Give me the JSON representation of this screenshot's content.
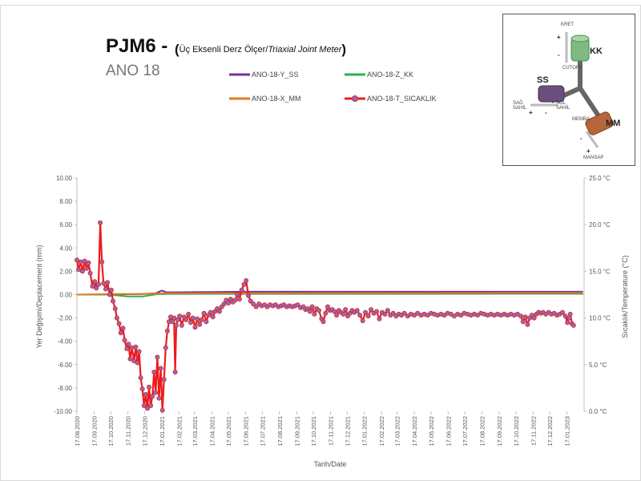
{
  "header": {
    "title": "PJM6 -",
    "subtitle_prefix": "Üç Eksenli Derz Ölçer/",
    "subtitle_italic": "Triaxial Joint Meter",
    "paren_open": "(",
    "paren_close": ")",
    "instrument": "ANO 18"
  },
  "inset": {
    "kret": "KRET",
    "cutoff": "CUTOFF",
    "kk": "KK",
    "ss": "SS",
    "mm": "MM",
    "sag_sahil": "SAĞ SAHİL",
    "sol_sahil": "SOL SAHİL",
    "memba": "MEMBA",
    "mansap": "MANSAP",
    "plus": "+",
    "minus": "-",
    "colors": {
      "kk": "#7dbb80",
      "ss": "#6b4f7e",
      "mm": "#b8653b"
    }
  },
  "chart_data": {
    "type": "line",
    "x_type": "date",
    "x_ticks": [
      "17.08.2020",
      "17.09.2020",
      "17.10.2020",
      "17.11.2020",
      "17.12.2020",
      "17.01.2021",
      "17.02.2021",
      "17.03.2021",
      "17.04.2021",
      "17.05.2021",
      "17.06.2021",
      "17.07.2021",
      "17.08.2021",
      "17.09.2021",
      "17.10.2021",
      "17.11.2021",
      "17.12.2021",
      "17.01.2022",
      "17.02.2022",
      "17.03.2022",
      "17.04.2022",
      "17.05.2022",
      "17.06.2022",
      "17.07.2022",
      "17.08.2022",
      "17.09.2022",
      "17.10.2022",
      "17.11.2022",
      "17.12.2022",
      "17.01.2023"
    ],
    "xlabel": "Tarih/Date",
    "ylabel_left": "Yer Değişimi/Deplacement (mm)",
    "ylabel_right": "Sıcaklık/Temperature (°C)",
    "ylim_left": [
      -10,
      10
    ],
    "yticks_left": [
      "10.00",
      "8.00",
      "6.00",
      "4.00",
      "2.00",
      "0.00",
      "-2.00",
      "-4.00",
      "-6.00",
      "-8.00",
      "-10.00"
    ],
    "ylim_right": [
      0,
      25
    ],
    "yticks_right": [
      "25.0 °C",
      "20.0 °C",
      "15.0 °C",
      "10.0 °C",
      "5.0 °C",
      "0.0 °C"
    ],
    "grid": false,
    "legend": "top-center",
    "series": [
      {
        "name": "ANO-18-Y_SS",
        "axis": "left",
        "color": "#7030a0",
        "points": [
          [
            "2020-08-17",
            0.0
          ],
          [
            "2020-11-01",
            0.02
          ],
          [
            "2020-12-10",
            0.05
          ],
          [
            "2021-01-05",
            0.1
          ],
          [
            "2021-01-17",
            0.35
          ],
          [
            "2021-01-25",
            0.2
          ],
          [
            "2021-02-10",
            0.2
          ],
          [
            "2021-06-15",
            0.25
          ],
          [
            "2023-02-15",
            0.25
          ]
        ]
      },
      {
        "name": "ANO-18-Z_KK",
        "axis": "left",
        "color": "#2eae4e",
        "points": [
          [
            "2020-08-17",
            0.0
          ],
          [
            "2020-10-15",
            0.0
          ],
          [
            "2020-11-15",
            -0.15
          ],
          [
            "2020-12-15",
            -0.15
          ],
          [
            "2021-01-10",
            0.05
          ],
          [
            "2021-02-10",
            0.08
          ],
          [
            "2023-02-15",
            0.1
          ]
        ]
      },
      {
        "name": "ANO-18-X_MM",
        "axis": "left",
        "color": "#e07a1f",
        "points": [
          [
            "2020-08-17",
            0.0
          ],
          [
            "2020-10-15",
            0.05
          ],
          [
            "2020-12-15",
            0.05
          ],
          [
            "2021-01-10",
            0.1
          ],
          [
            "2021-02-10",
            0.12
          ],
          [
            "2023-02-15",
            0.15
          ]
        ]
      },
      {
        "name": "ANO-18-T_SICAKLIK",
        "axis": "right",
        "color": "#ee1b1b",
        "marker": "#8a6fb6",
        "points": [
          [
            "2020-08-17",
            16.2
          ],
          [
            "2020-08-20",
            15.2
          ],
          [
            "2020-08-24",
            16.0
          ],
          [
            "2020-08-27",
            15.0
          ],
          [
            "2020-08-31",
            16.1
          ],
          [
            "2020-09-03",
            15.3
          ],
          [
            "2020-09-07",
            15.9
          ],
          [
            "2020-09-10",
            14.8
          ],
          [
            "2020-09-14",
            13.4
          ],
          [
            "2020-09-18",
            13.9
          ],
          [
            "2020-09-21",
            13.2
          ],
          [
            "2020-09-25",
            13.6
          ],
          [
            "2020-09-28",
            20.2
          ],
          [
            "2020-10-01",
            16.0
          ],
          [
            "2020-10-04",
            13.7
          ],
          [
            "2020-10-08",
            13.1
          ],
          [
            "2020-10-11",
            13.8
          ],
          [
            "2020-10-15",
            12.5
          ],
          [
            "2020-10-18",
            13.0
          ],
          [
            "2020-10-21",
            11.8
          ],
          [
            "2020-10-25",
            11.0
          ],
          [
            "2020-10-28",
            10.0
          ],
          [
            "2020-11-01",
            9.4
          ],
          [
            "2020-11-04",
            8.4
          ],
          [
            "2020-11-08",
            8.9
          ],
          [
            "2020-11-11",
            7.6
          ],
          [
            "2020-11-15",
            6.7
          ],
          [
            "2020-11-18",
            7.2
          ],
          [
            "2020-11-21",
            5.6
          ],
          [
            "2020-11-24",
            6.8
          ],
          [
            "2020-11-28",
            5.4
          ],
          [
            "2020-12-01",
            6.9
          ],
          [
            "2020-12-04",
            5.2
          ],
          [
            "2020-12-07",
            6.4
          ],
          [
            "2020-12-10",
            3.6
          ],
          [
            "2020-12-13",
            2.4
          ],
          [
            "2020-12-16",
            0.6
          ],
          [
            "2020-12-19",
            1.8
          ],
          [
            "2020-12-22",
            0.3
          ],
          [
            "2020-12-25",
            2.6
          ],
          [
            "2020-12-28",
            0.6
          ],
          [
            "2020-12-31",
            1.6
          ],
          [
            "2021-01-03",
            4.2
          ],
          [
            "2021-01-06",
            2.0
          ],
          [
            "2021-01-09",
            5.8
          ],
          [
            "2021-01-12",
            1.4
          ],
          [
            "2021-01-15",
            4.6
          ],
          [
            "2021-01-18",
            0.1
          ],
          [
            "2021-01-21",
            3.4
          ],
          [
            "2021-01-24",
            6.8
          ],
          [
            "2021-01-27",
            8.6
          ],
          [
            "2021-01-30",
            9.6
          ],
          [
            "2021-02-02",
            10.1
          ],
          [
            "2021-02-05",
            9.6
          ],
          [
            "2021-02-08",
            10.0
          ],
          [
            "2021-02-10",
            4.2
          ],
          [
            "2021-02-12",
            9.2
          ],
          [
            "2021-02-15",
            9.8
          ],
          [
            "2021-02-18",
            10.2
          ],
          [
            "2021-02-22",
            9.2
          ],
          [
            "2021-02-26",
            10.1
          ],
          [
            "2021-03-02",
            9.8
          ],
          [
            "2021-03-06",
            10.4
          ],
          [
            "2021-03-10",
            9.5
          ],
          [
            "2021-03-14",
            10.0
          ],
          [
            "2021-03-18",
            9.0
          ],
          [
            "2021-03-22",
            9.9
          ],
          [
            "2021-03-26",
            9.3
          ],
          [
            "2021-03-30",
            9.8
          ],
          [
            "2021-04-03",
            10.5
          ],
          [
            "2021-04-07",
            9.6
          ],
          [
            "2021-04-11",
            10.3
          ],
          [
            "2021-04-15",
            10.6
          ],
          [
            "2021-04-19",
            10.1
          ],
          [
            "2021-04-23",
            10.7
          ],
          [
            "2021-04-27",
            11.0
          ],
          [
            "2021-05-01",
            10.7
          ],
          [
            "2021-05-05",
            11.2
          ],
          [
            "2021-05-09",
            11.5
          ],
          [
            "2021-05-13",
            11.9
          ],
          [
            "2021-05-17",
            11.6
          ],
          [
            "2021-05-21",
            12.0
          ],
          [
            "2021-05-25",
            11.7
          ],
          [
            "2021-05-29",
            11.9
          ],
          [
            "2021-06-02",
            12.5
          ],
          [
            "2021-06-06",
            12.0
          ],
          [
            "2021-06-10",
            13.0
          ],
          [
            "2021-06-14",
            13.6
          ],
          [
            "2021-06-18",
            14.0
          ],
          [
            "2021-06-22",
            12.4
          ],
          [
            "2021-06-26",
            11.8
          ],
          [
            "2021-07-01",
            11.5
          ],
          [
            "2021-07-06",
            11.2
          ],
          [
            "2021-07-11",
            11.5
          ],
          [
            "2021-07-16",
            11.3
          ],
          [
            "2021-07-21",
            11.4
          ],
          [
            "2021-07-26",
            11.2
          ],
          [
            "2021-07-31",
            11.4
          ],
          [
            "2021-08-05",
            11.3
          ],
          [
            "2021-08-10",
            11.4
          ],
          [
            "2021-08-15",
            11.2
          ],
          [
            "2021-08-20",
            11.3
          ],
          [
            "2021-08-25",
            11.4
          ],
          [
            "2021-08-30",
            11.2
          ],
          [
            "2021-09-04",
            11.3
          ],
          [
            "2021-09-09",
            11.2
          ],
          [
            "2021-09-14",
            11.3
          ],
          [
            "2021-09-19",
            11.4
          ],
          [
            "2021-09-24",
            11.1
          ],
          [
            "2021-09-29",
            11.2
          ],
          [
            "2021-10-03",
            10.9
          ],
          [
            "2021-10-07",
            11.0
          ],
          [
            "2021-10-11",
            10.7
          ],
          [
            "2021-10-15",
            11.2
          ],
          [
            "2021-10-19",
            10.4
          ],
          [
            "2021-10-23",
            11.0
          ],
          [
            "2021-10-27",
            10.8
          ],
          [
            "2021-11-01",
            9.9
          ],
          [
            "2021-11-04",
            9.6
          ],
          [
            "2021-11-08",
            10.5
          ],
          [
            "2021-11-12",
            11.2
          ],
          [
            "2021-11-16",
            10.8
          ],
          [
            "2021-11-20",
            10.9
          ],
          [
            "2021-11-24",
            10.7
          ],
          [
            "2021-11-28",
            10.3
          ],
          [
            "2021-12-02",
            10.8
          ],
          [
            "2021-12-06",
            10.6
          ],
          [
            "2021-12-10",
            10.4
          ],
          [
            "2021-12-14",
            10.9
          ],
          [
            "2021-12-18",
            10.2
          ],
          [
            "2021-12-22",
            10.5
          ],
          [
            "2021-12-26",
            10.8
          ],
          [
            "2021-12-30",
            10.6
          ],
          [
            "2022-01-04",
            10.8
          ],
          [
            "2022-01-09",
            10.3
          ],
          [
            "2022-01-14",
            9.7
          ],
          [
            "2022-01-19",
            10.6
          ],
          [
            "2022-01-24",
            10.2
          ],
          [
            "2022-01-29",
            10.9
          ],
          [
            "2022-02-03",
            10.5
          ],
          [
            "2022-02-08",
            10.7
          ],
          [
            "2022-02-13",
            9.9
          ],
          [
            "2022-02-18",
            10.6
          ],
          [
            "2022-02-23",
            10.4
          ],
          [
            "2022-02-28",
            10.8
          ],
          [
            "2022-03-05",
            10.3
          ],
          [
            "2022-03-10",
            10.5
          ],
          [
            "2022-03-15",
            10.2
          ],
          [
            "2022-03-20",
            10.4
          ],
          [
            "2022-03-25",
            10.3
          ],
          [
            "2022-03-30",
            10.5
          ],
          [
            "2022-04-05",
            10.2
          ],
          [
            "2022-04-11",
            10.4
          ],
          [
            "2022-04-17",
            10.3
          ],
          [
            "2022-04-23",
            10.5
          ],
          [
            "2022-04-29",
            10.3
          ],
          [
            "2022-05-05",
            10.4
          ],
          [
            "2022-05-11",
            10.3
          ],
          [
            "2022-05-17",
            10.5
          ],
          [
            "2022-05-23",
            10.4
          ],
          [
            "2022-05-29",
            10.3
          ],
          [
            "2022-06-04",
            10.4
          ],
          [
            "2022-06-10",
            10.3
          ],
          [
            "2022-06-16",
            10.5
          ],
          [
            "2022-06-22",
            10.4
          ],
          [
            "2022-06-28",
            10.2
          ],
          [
            "2022-07-04",
            10.4
          ],
          [
            "2022-07-10",
            10.3
          ],
          [
            "2022-07-16",
            10.5
          ],
          [
            "2022-07-22",
            10.4
          ],
          [
            "2022-07-28",
            10.3
          ],
          [
            "2022-08-03",
            10.4
          ],
          [
            "2022-08-09",
            10.3
          ],
          [
            "2022-08-15",
            10.5
          ],
          [
            "2022-08-21",
            10.4
          ],
          [
            "2022-08-27",
            10.3
          ],
          [
            "2022-09-02",
            10.4
          ],
          [
            "2022-09-08",
            10.3
          ],
          [
            "2022-09-14",
            10.4
          ],
          [
            "2022-09-20",
            10.3
          ],
          [
            "2022-09-26",
            10.4
          ],
          [
            "2022-10-02",
            10.3
          ],
          [
            "2022-10-08",
            10.4
          ],
          [
            "2022-10-14",
            10.3
          ],
          [
            "2022-10-20",
            10.4
          ],
          [
            "2022-10-26",
            10.2
          ],
          [
            "2022-10-30",
            9.6
          ],
          [
            "2022-11-03",
            10.1
          ],
          [
            "2022-11-07",
            9.3
          ],
          [
            "2022-11-11",
            10.0
          ],
          [
            "2022-11-15",
            10.3
          ],
          [
            "2022-11-19",
            10.0
          ],
          [
            "2022-11-23",
            10.4
          ],
          [
            "2022-11-27",
            10.6
          ],
          [
            "2022-12-01",
            10.5
          ],
          [
            "2022-12-05",
            10.6
          ],
          [
            "2022-12-10",
            10.4
          ],
          [
            "2022-12-15",
            10.6
          ],
          [
            "2022-12-20",
            10.4
          ],
          [
            "2022-12-25",
            10.5
          ],
          [
            "2022-12-30",
            10.3
          ],
          [
            "2023-01-04",
            10.4
          ],
          [
            "2023-01-09",
            10.6
          ],
          [
            "2023-01-14",
            10.2
          ],
          [
            "2023-01-18",
            9.5
          ],
          [
            "2023-01-21",
            10.0
          ],
          [
            "2023-01-23",
            10.4
          ],
          [
            "2023-01-26",
            9.4
          ],
          [
            "2023-01-29",
            9.2
          ]
        ]
      }
    ]
  }
}
